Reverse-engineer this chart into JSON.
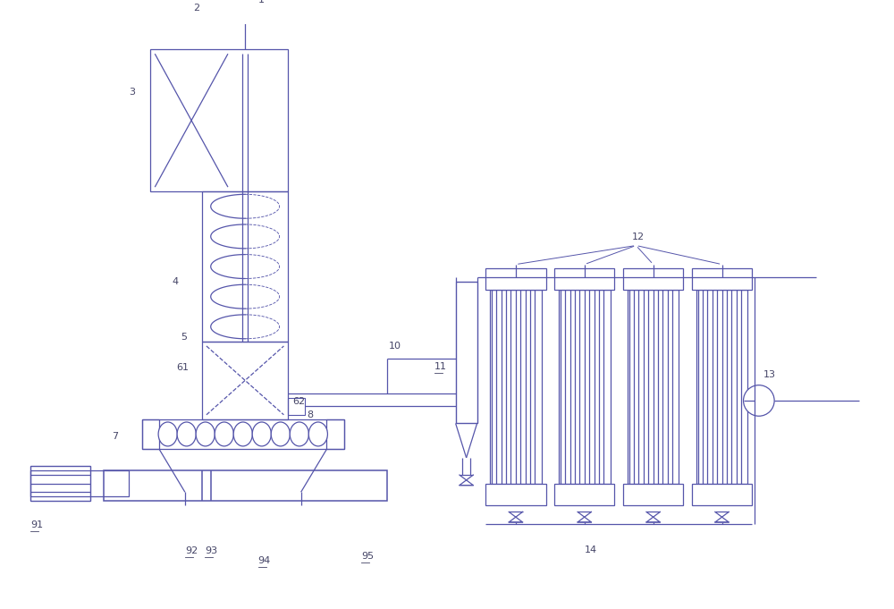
{
  "bg_color": "#ffffff",
  "line_color": "#5555aa",
  "label_color": "#444466",
  "fig_width": 10.0,
  "fig_height": 6.81,
  "dpi": 100,
  "lw": 0.9
}
